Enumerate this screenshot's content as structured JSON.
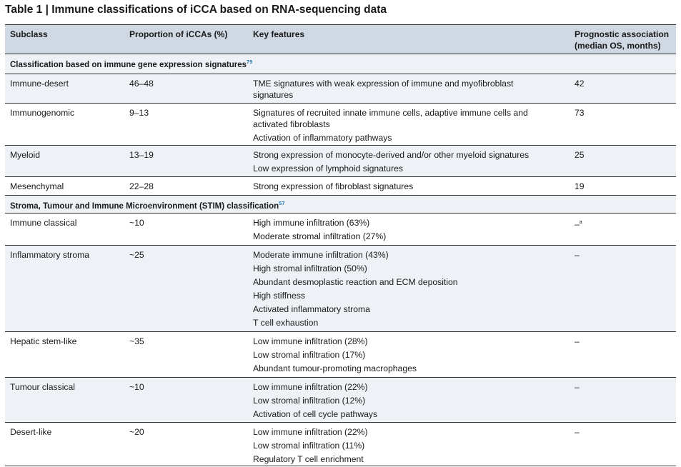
{
  "title": "Table 1 | Immune classifications of iCCA based on RNA-sequencing data",
  "headers": {
    "subclass": "Subclass",
    "proportion": "Proportion of iCCAs (%)",
    "features": "Key features",
    "prognostic_line1": "Prognostic association",
    "prognostic_line2": "(median OS, months)"
  },
  "sections": [
    {
      "label": "Classification based on immune gene expression signatures",
      "ref": "79",
      "rows": [
        {
          "subclass": "Immune-desert",
          "proportion": "46–48",
          "features": [
            "TME signatures with weak expression of immune and myofibroblast signatures"
          ],
          "os": "42"
        },
        {
          "subclass": "Immunogenomic",
          "proportion": "9–13",
          "features": [
            "Signatures of recruited innate immune cells, adaptive immune cells and activated fibroblasts",
            "Activation of inflammatory pathways"
          ],
          "os": "73"
        },
        {
          "subclass": "Myeloid",
          "proportion": "13–19",
          "features": [
            "Strong expression of monocyte-derived and/or other myeloid signatures",
            "Low expression of lymphoid signatures"
          ],
          "os": "25"
        },
        {
          "subclass": "Mesenchymal",
          "proportion": "22–28",
          "features": [
            "Strong expression of fibroblast signatures"
          ],
          "os": "19"
        }
      ]
    },
    {
      "label": "Stroma, Tumour and Immune Microenvironment (STIM) classification",
      "ref": "57",
      "rows": [
        {
          "subclass": "Immune classical",
          "proportion": "~10",
          "features": [
            "High immune infiltration (63%)",
            "Moderate stromal infiltration (27%)"
          ],
          "os": "–",
          "os_note": "a"
        },
        {
          "subclass": "Inflammatory stroma",
          "proportion": "~25",
          "features": [
            "Moderate immune infiltration (43%)",
            "High stromal infiltration (50%)",
            "Abundant desmoplastic reaction and ECM deposition",
            "High stiffness",
            "Activated inflammatory stroma",
            "T cell exhaustion"
          ],
          "os": "–"
        },
        {
          "subclass": "Hepatic stem-like",
          "proportion": "~35",
          "features": [
            "Low immune infiltration (28%)",
            "Low stromal infiltration (17%)",
            "Abundant tumour-promoting macrophages"
          ],
          "os": "–"
        },
        {
          "subclass": "Tumour classical",
          "proportion": "~10",
          "features": [
            "Low immune infiltration (22%)",
            "Low stromal infiltration (12%)",
            "Activation of cell cycle pathways"
          ],
          "os": "–"
        },
        {
          "subclass": "Desert-like",
          "proportion": "~20",
          "features": [
            "Low immune infiltration (22%)",
            "Low stromal infiltration (11%)",
            "Regulatory T cell enrichment"
          ],
          "os": "–"
        }
      ]
    }
  ]
}
